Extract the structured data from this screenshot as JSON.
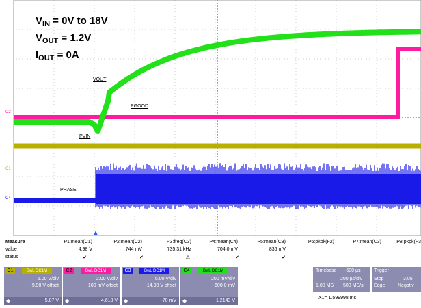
{
  "annotation": {
    "vin": {
      "main": "V",
      "sub": "IN",
      "rest": " = 0V to 18V"
    },
    "vout": {
      "main": "V",
      "sub": "OUT",
      "rest": " = 1.2V"
    },
    "iout": {
      "main": "I",
      "sub": "OUT",
      "rest": " = 0A"
    }
  },
  "traces": {
    "vout": {
      "label": "VOUT",
      "color": "#22e01a"
    },
    "pgood": {
      "label": "PGOOD",
      "color": "#ff1aa0"
    },
    "pvin": {
      "label": "PVIN",
      "color": "#b8b000"
    },
    "phase": {
      "label": "PHASE",
      "color": "#1a1ae8"
    }
  },
  "channel_markers": {
    "c1": "C1",
    "c2": "C2",
    "c4": "C4"
  },
  "measure": {
    "title": "Measure",
    "row_value": "value",
    "row_status": "status",
    "columns": [
      {
        "name": "P1:mean(C1)",
        "value": "4.98 V",
        "status": "✔"
      },
      {
        "name": "P2:mean(C2)",
        "value": "744 mV",
        "status": "✔"
      },
      {
        "name": "P3:freq(C3)",
        "value": "735.31 kHz",
        "status": "⚠"
      },
      {
        "name": "P4:mean(C4)",
        "value": "704.0 mV",
        "status": "✔"
      },
      {
        "name": "P5:mean(C3)",
        "value": "836 mV",
        "status": "✔"
      },
      {
        "name": "P6:pkpk(F2)",
        "value": "",
        "status": ""
      },
      {
        "name": "P7:mean(C3)",
        "value": "",
        "status": ""
      },
      {
        "name": "P8:pkpk(F3",
        "value": "",
        "status": ""
      }
    ]
  },
  "channels": [
    {
      "tag": "C1",
      "badge": "BwL DC1M",
      "color": "#b8b000",
      "scale": "5.00 V/div",
      "offset": "-9.90 V offset",
      "value": "5.07 V"
    },
    {
      "tag": "C2",
      "badge": "BwL DC1M",
      "color": "#ff1aa0",
      "scale": "2.00 V/div",
      "offset": "100 mV offset",
      "value": "4.618 V"
    },
    {
      "tag": "C3",
      "badge": "BwL DC1M",
      "color": "#1a1ae8",
      "scale": "5.00 V/div",
      "offset": "-14.90 V offset",
      "value": "-70 mV"
    },
    {
      "tag": "C4",
      "badge": "BwL DC1M",
      "color": "#22e01a",
      "scale": "200 mV/div",
      "offset": "-600.0 mV",
      "value": "1.2143 V"
    }
  ],
  "timebase": {
    "label": "Timebase",
    "delay": "-600 µs",
    "per_div": "200 µs/div",
    "samples": "1.00 MS",
    "rate": "500 MS/s"
  },
  "trigger": {
    "label": "Trigger",
    "mode": "Stop",
    "type": "Edge",
    "level": "3.05",
    "slope": "Negativ"
  },
  "cursor_readout": "X1=  1.599998 ms"
}
